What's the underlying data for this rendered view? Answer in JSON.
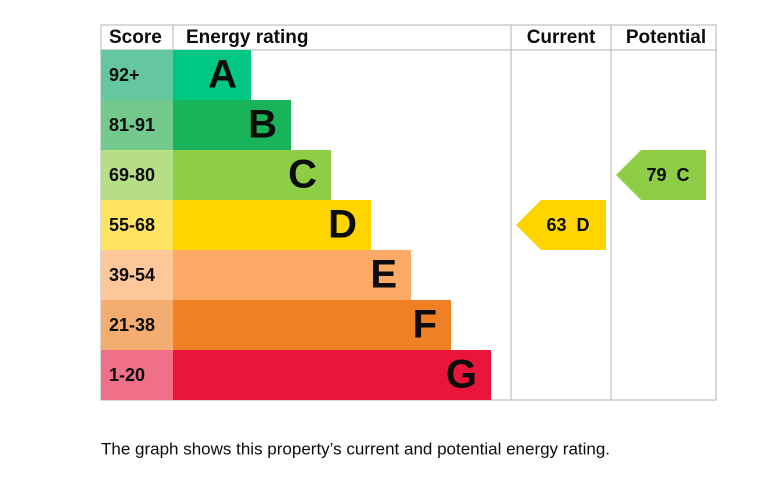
{
  "header": {
    "score": "Score",
    "rating": "Energy rating",
    "current": "Current",
    "potential": "Potential"
  },
  "bands": [
    {
      "range": "92+",
      "letter": "A",
      "color": "#00c781",
      "light": "#64c79f"
    },
    {
      "range": "81-91",
      "letter": "B",
      "color": "#19b459",
      "light": "#74ca8d"
    },
    {
      "range": "69-80",
      "letter": "C",
      "color": "#8dce46",
      "light": "#b6de87"
    },
    {
      "range": "55-68",
      "letter": "D",
      "color": "#ffd500",
      "light": "#ffe462"
    },
    {
      "range": "39-54",
      "letter": "E",
      "color": "#fcaa65",
      "light": "#fdc79a"
    },
    {
      "range": "21-38",
      "letter": "F",
      "color": "#ef8023",
      "light": "#f4ad70"
    },
    {
      "range": "1-20",
      "letter": "G",
      "color": "#e9153b",
      "light": "#f0708a"
    }
  ],
  "current": {
    "score": 63,
    "band": "D"
  },
  "potential": {
    "score": 79,
    "band": "C"
  },
  "caption": "The graph shows this property’s current and potential energy rating."
}
